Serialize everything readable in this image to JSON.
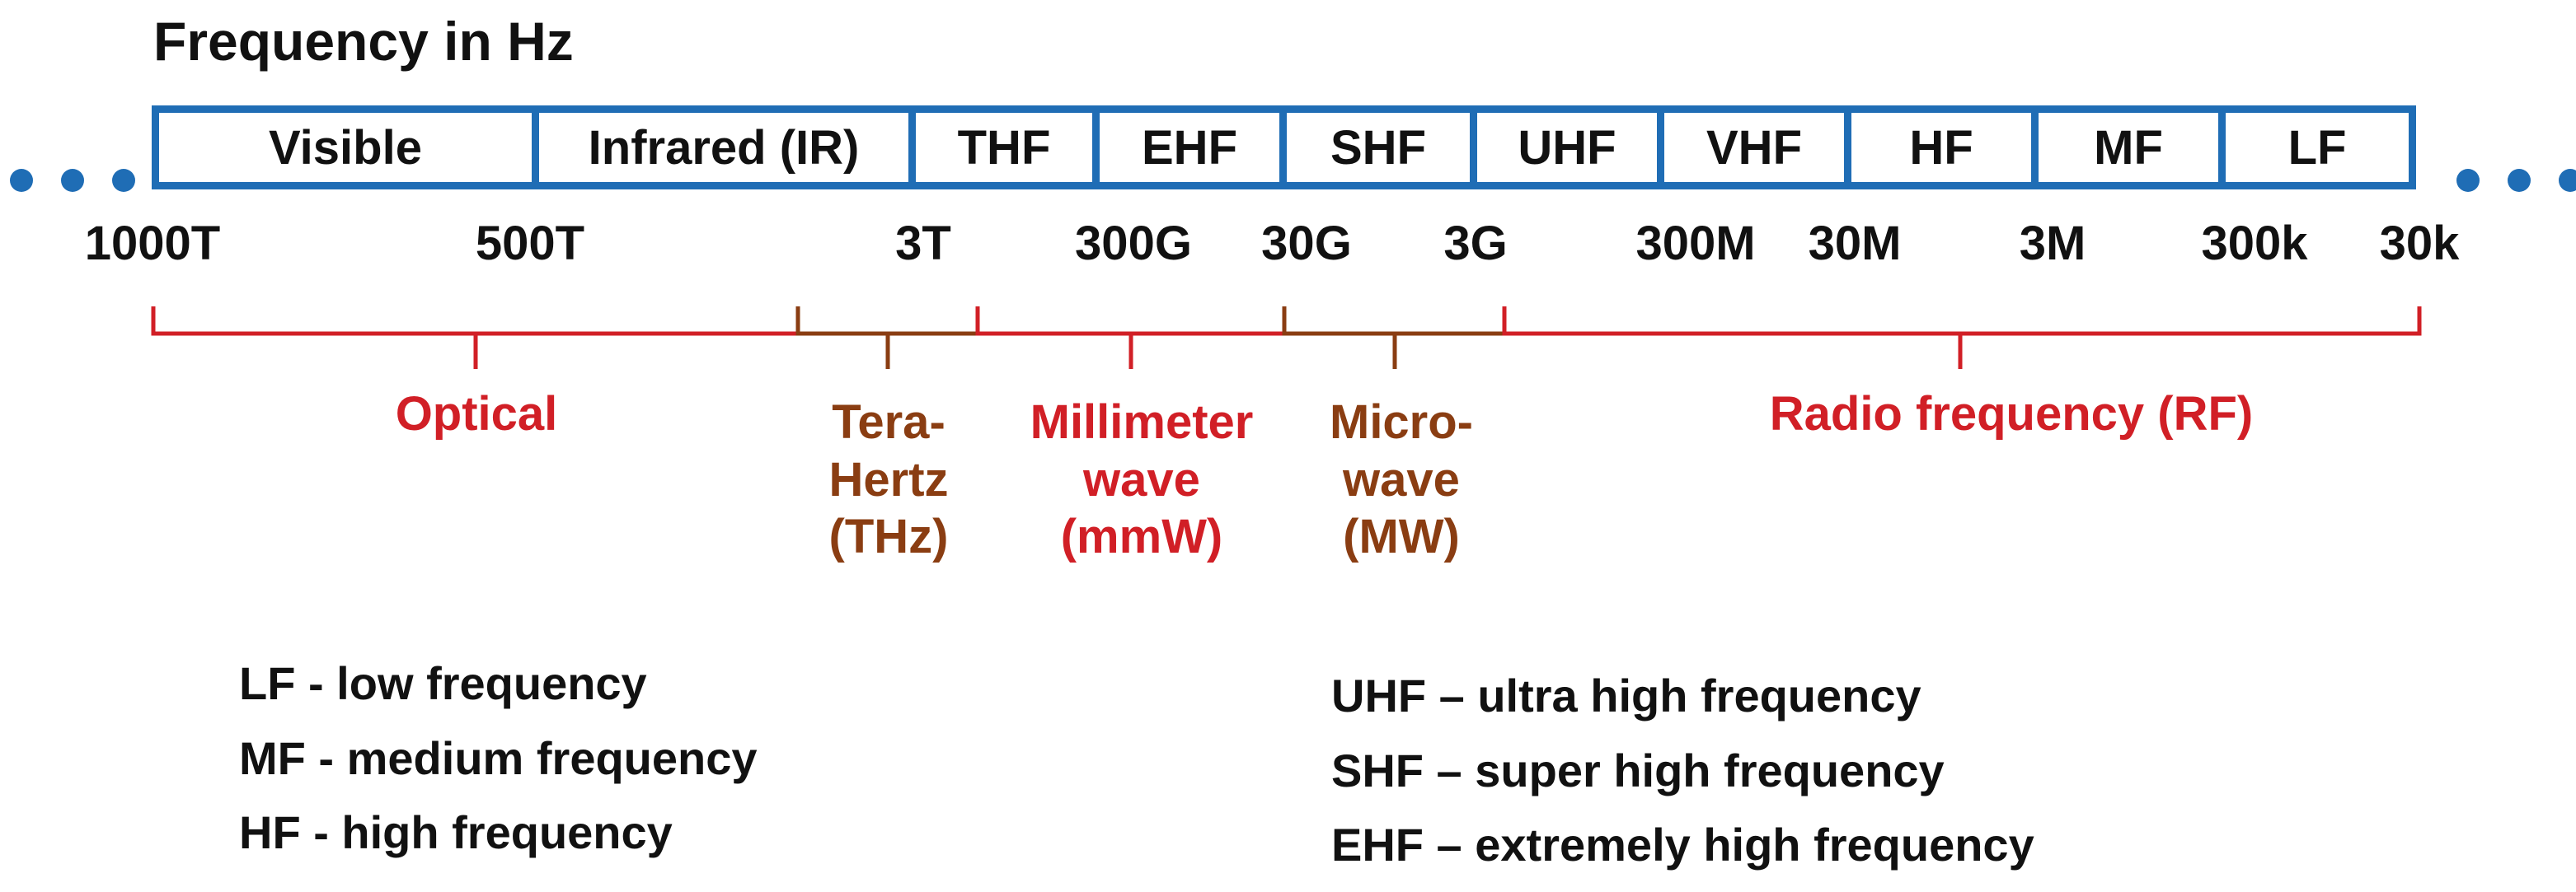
{
  "title": "Frequency in Hz",
  "bands": [
    "Visible",
    "Infrared (IR)",
    "THF",
    "EHF",
    "SHF",
    "UHF",
    "VHF",
    "HF",
    "MF",
    "LF"
  ],
  "tick_labels": [
    "1000T",
    "500T",
    "3T",
    "300G",
    "30G",
    "3G",
    "300M",
    "30M",
    "3M",
    "300k",
    "30k"
  ],
  "regions": [
    {
      "lines": [
        "Optical"
      ]
    },
    {
      "lines": [
        "Tera-",
        "Hertz",
        "(THz)"
      ]
    },
    {
      "lines": [
        "Millimeter",
        "wave",
        "(mmW)"
      ]
    },
    {
      "lines": [
        "Micro-",
        "wave",
        "(MW)"
      ]
    },
    {
      "lines": [
        "Radio frequency (RF)"
      ]
    }
  ],
  "legend_left": [
    "LF - low frequency",
    "MF - medium frequency",
    "HF - high frequency"
  ],
  "legend_right": [
    "UHF – ultra high frequency",
    "SHF – super high frequency",
    "EHF – extremely high frequency"
  ],
  "colors": {
    "band_border": "#1f6db5",
    "region_red": "#d11f26",
    "region_brown": "#8a3d12"
  }
}
